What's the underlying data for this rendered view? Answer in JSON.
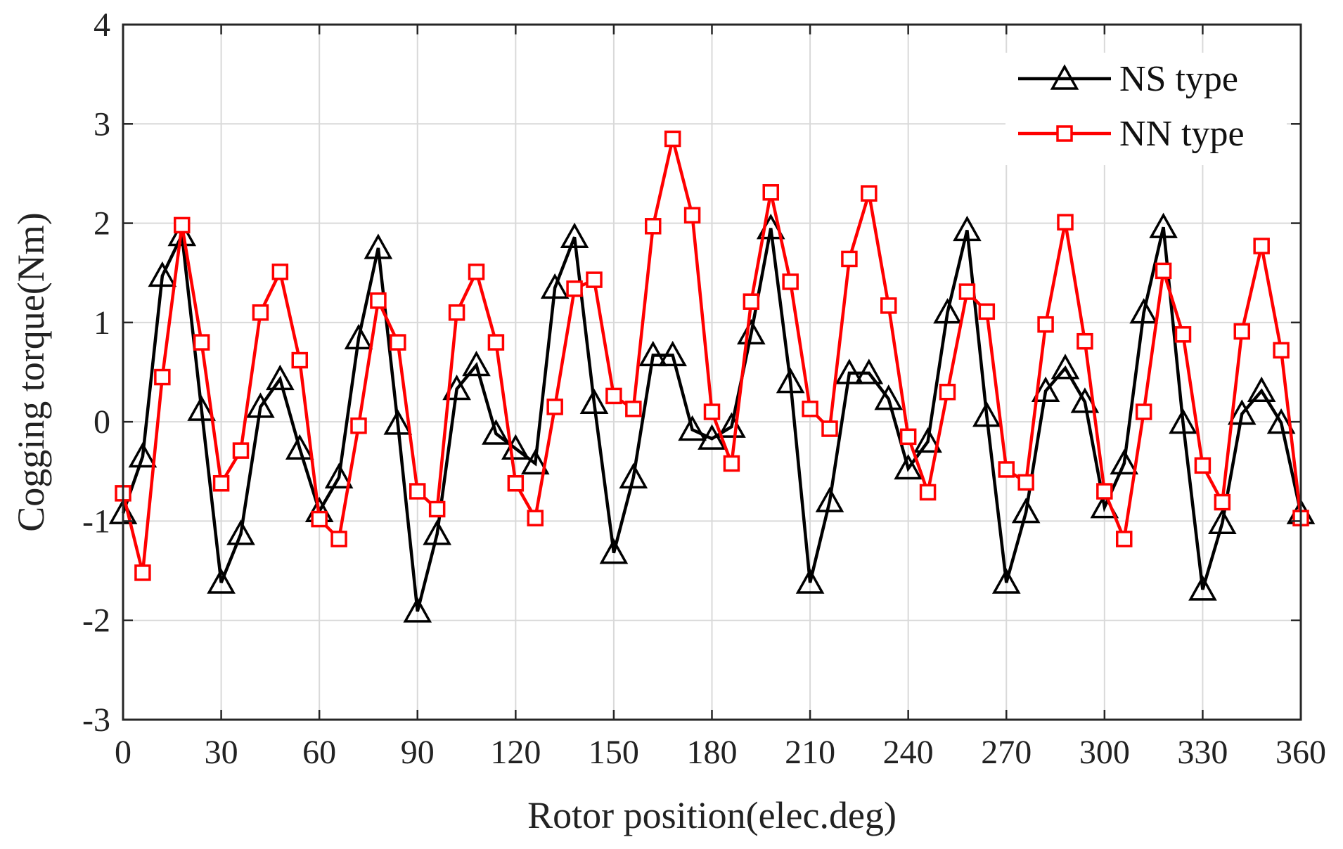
{
  "chart_data": {
    "type": "line",
    "title": "",
    "xlabel": "Rotor position(elec.deg)",
    "ylabel": "Cogging torque(Nm)",
    "xlim": [
      0,
      360
    ],
    "ylim": [
      -3,
      4
    ],
    "xticks": [
      0,
      30,
      60,
      90,
      120,
      150,
      180,
      210,
      240,
      270,
      300,
      330,
      360
    ],
    "yticks": [
      -3,
      -2,
      -1,
      0,
      1,
      2,
      3,
      4
    ],
    "grid": true,
    "legend_position": "top-right",
    "x": [
      0,
      6,
      12,
      18,
      24,
      30,
      36,
      42,
      48,
      54,
      60,
      66,
      72,
      78,
      84,
      90,
      96,
      102,
      108,
      114,
      120,
      126,
      132,
      138,
      144,
      150,
      156,
      162,
      168,
      174,
      180,
      186,
      192,
      198,
      204,
      210,
      216,
      222,
      228,
      234,
      240,
      246,
      252,
      258,
      264,
      270,
      276,
      282,
      288,
      294,
      300,
      306,
      312,
      318,
      324,
      330,
      336,
      342,
      348,
      354,
      360
    ],
    "series": [
      {
        "name": "NS type",
        "color": "#000000",
        "marker": "triangle",
        "values": [
          -0.92,
          -0.35,
          1.47,
          1.88,
          0.12,
          -1.62,
          -1.13,
          0.15,
          0.43,
          -0.27,
          -0.9,
          -0.56,
          0.84,
          1.75,
          -0.02,
          -1.91,
          -1.13,
          0.33,
          0.57,
          -0.12,
          -0.27,
          -0.42,
          1.35,
          1.86,
          0.19,
          -1.32,
          -0.56,
          0.67,
          0.67,
          -0.08,
          -0.17,
          -0.05,
          0.89,
          1.95,
          0.4,
          -1.62,
          -0.8,
          0.49,
          0.49,
          0.23,
          -0.47,
          -0.2,
          1.1,
          1.93,
          0.06,
          -1.62,
          -0.91,
          0.31,
          0.54,
          0.2,
          -0.86,
          -0.42,
          1.1,
          1.96,
          -0.01,
          -1.69,
          -1.02,
          0.08,
          0.31,
          -0.01,
          -0.92
        ]
      },
      {
        "name": "NN type",
        "color": "#ff0000",
        "marker": "square",
        "values": [
          -0.72,
          -1.52,
          0.45,
          1.98,
          0.8,
          -0.62,
          -0.29,
          1.1,
          1.51,
          0.62,
          -0.98,
          -1.18,
          -0.04,
          1.22,
          0.8,
          -0.7,
          -0.88,
          1.1,
          1.51,
          0.8,
          -0.62,
          -0.97,
          0.15,
          1.34,
          1.43,
          0.26,
          0.13,
          1.97,
          2.85,
          2.08,
          0.1,
          -0.42,
          1.21,
          2.31,
          1.41,
          0.13,
          -0.07,
          1.64,
          2.3,
          1.17,
          -0.15,
          -0.71,
          0.3,
          1.31,
          1.11,
          -0.48,
          -0.61,
          0.98,
          2.01,
          0.81,
          -0.7,
          -1.18,
          0.1,
          1.52,
          0.88,
          -0.44,
          -0.81,
          0.91,
          1.77,
          0.72,
          -0.97
        ]
      }
    ]
  },
  "colors": {
    "ns_series": "#000000",
    "nn_series": "#ff0000",
    "grid": "#d9d9d9",
    "axes": "#262626"
  }
}
